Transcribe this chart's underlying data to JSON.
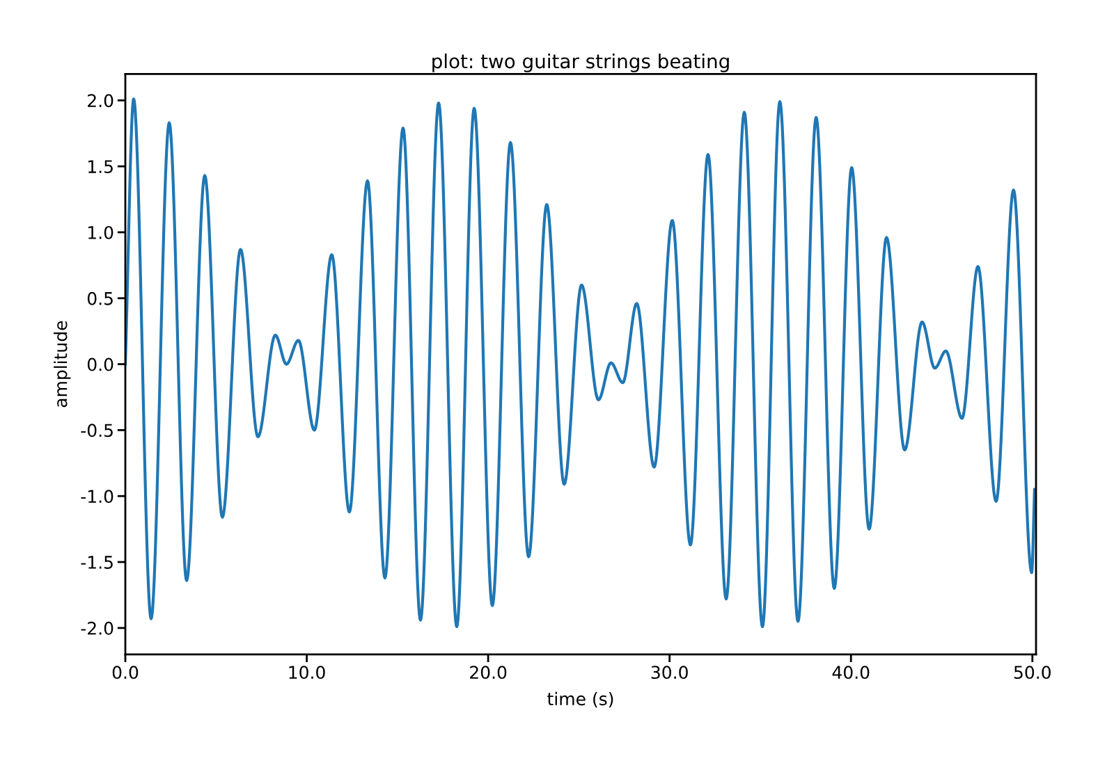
{
  "chart_data": {
    "type": "line",
    "title": "plot: two guitar strings beating",
    "xlabel": "time (s)",
    "ylabel": "amplitude",
    "xlim": [
      0,
      50.2
    ],
    "ylim": [
      -2.2,
      2.2
    ],
    "xticks": [
      {
        "value": 0,
        "label": "0.0"
      },
      {
        "value": 10,
        "label": "10.0"
      },
      {
        "value": 20,
        "label": "20.0"
      },
      {
        "value": 30,
        "label": "30.0"
      },
      {
        "value": 40,
        "label": "40.0"
      },
      {
        "value": 50,
        "label": "50.0"
      }
    ],
    "yticks": [
      {
        "value": -2,
        "label": "-2.0"
      },
      {
        "value": -1.5,
        "label": "-1.5"
      },
      {
        "value": -1,
        "label": "-1.0"
      },
      {
        "value": -0.5,
        "label": "-0.5"
      },
      {
        "value": 0,
        "label": "0.0"
      },
      {
        "value": 0.5,
        "label": "0.5"
      },
      {
        "value": 1,
        "label": "1.0"
      },
      {
        "value": 1.5,
        "label": "1.5"
      },
      {
        "value": 2,
        "label": "2.0"
      }
    ],
    "grid": false,
    "legend": false,
    "series": [
      {
        "color": "#1f77b4",
        "x": [
          0,
          0.46,
          1.42,
          2.42,
          3.38,
          4.38,
          5.35,
          6.35,
          7.31,
          8.27,
          8.88,
          9.54,
          10.42,
          11.38,
          12.35,
          13.35,
          14.31,
          15.31,
          16.27,
          17.27,
          18.27,
          19.23,
          20.23,
          21.23,
          22.23,
          23.23,
          24.19,
          25.15,
          26.08,
          26.77,
          27.42,
          28.19,
          29.15,
          30.15,
          31.15,
          32.12,
          33.12,
          34.12,
          35.12,
          36.08,
          37.08,
          38.08,
          39.08,
          40.04,
          41.0,
          41.96,
          42.96,
          43.92,
          44.62,
          45.23,
          46.12,
          47.0,
          48.0,
          48.96,
          49.96,
          50.12
        ],
        "values": [
          0,
          2.01,
          -1.93,
          1.83,
          -1.64,
          1.43,
          -1.16,
          0.87,
          -0.55,
          0.22,
          0.0,
          0.18,
          -0.5,
          0.83,
          -1.12,
          1.39,
          -1.62,
          1.79,
          -1.94,
          1.98,
          -1.99,
          1.94,
          -1.83,
          1.68,
          -1.46,
          1.21,
          -0.91,
          0.6,
          -0.27,
          0.01,
          -0.14,
          0.46,
          -0.78,
          1.09,
          -1.37,
          1.59,
          -1.78,
          1.91,
          -1.99,
          1.99,
          -1.95,
          1.87,
          -1.7,
          1.49,
          -1.25,
          0.96,
          -0.65,
          0.32,
          -0.03,
          0.1,
          -0.41,
          0.74,
          -1.04,
          1.32,
          -1.58,
          -0.95
        ]
      }
    ]
  }
}
